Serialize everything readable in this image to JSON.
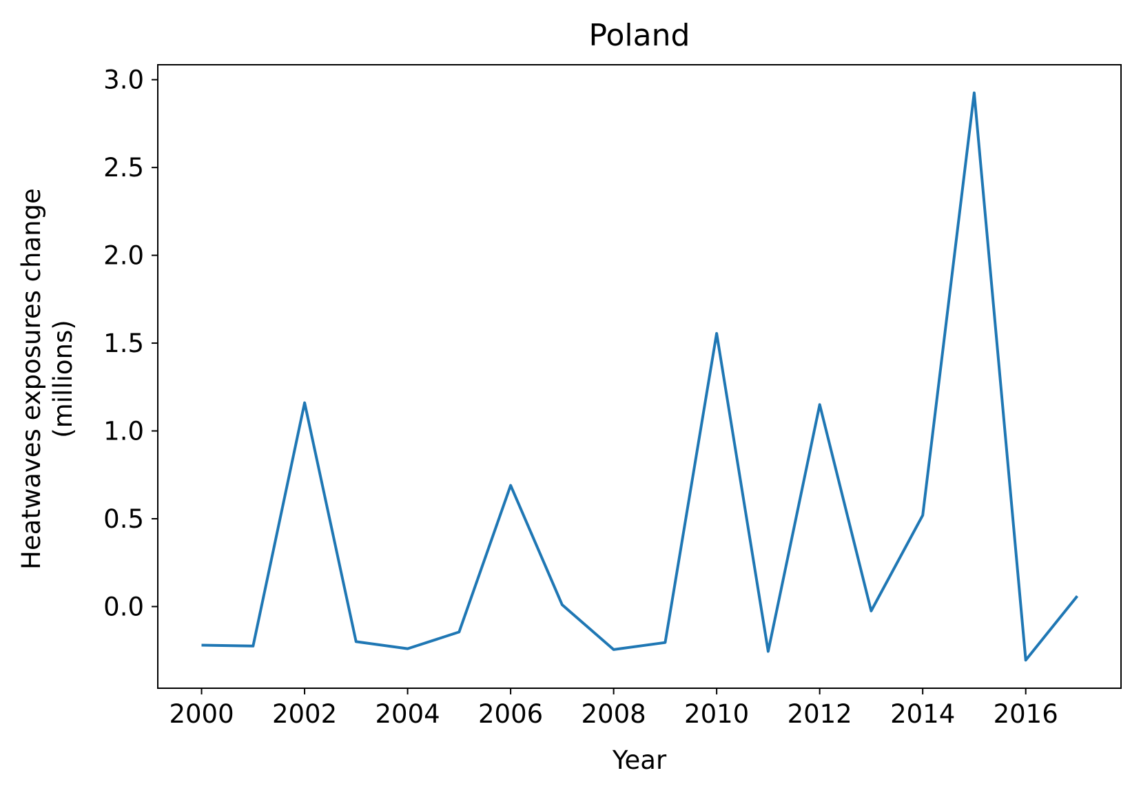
{
  "chart_data": {
    "type": "line",
    "title": "Poland",
    "xlabel": "Year",
    "ylabel": [
      "Heatwaves exposures change",
      "(millions)"
    ],
    "xlim": [
      1999.15,
      2017.85
    ],
    "ylim": [
      -0.465,
      3.085
    ],
    "x_ticks": [
      2000,
      2002,
      2004,
      2006,
      2008,
      2010,
      2012,
      2014,
      2016
    ],
    "x_tick_labels": [
      "2000",
      "2002",
      "2004",
      "2006",
      "2008",
      "2010",
      "2012",
      "2014",
      "2016"
    ],
    "y_ticks": [
      0.0,
      0.5,
      1.0,
      1.5,
      2.0,
      2.5,
      3.0
    ],
    "y_tick_labels": [
      "0.0",
      "0.5",
      "1.0",
      "1.5",
      "2.0",
      "2.5",
      "3.0"
    ],
    "grid": false,
    "series": [
      {
        "color": "#1f77b4",
        "x": [
          2000,
          2001,
          2002,
          2003,
          2004,
          2005,
          2006,
          2007,
          2008,
          2009,
          2010,
          2011,
          2012,
          2013,
          2014,
          2015,
          2016,
          2017
        ],
        "y": [
          -0.22,
          -0.225,
          1.16,
          -0.2,
          -0.24,
          -0.145,
          0.69,
          0.01,
          -0.245,
          -0.205,
          1.555,
          -0.255,
          1.15,
          -0.025,
          0.52,
          2.925,
          -0.305,
          0.06
        ]
      }
    ]
  }
}
